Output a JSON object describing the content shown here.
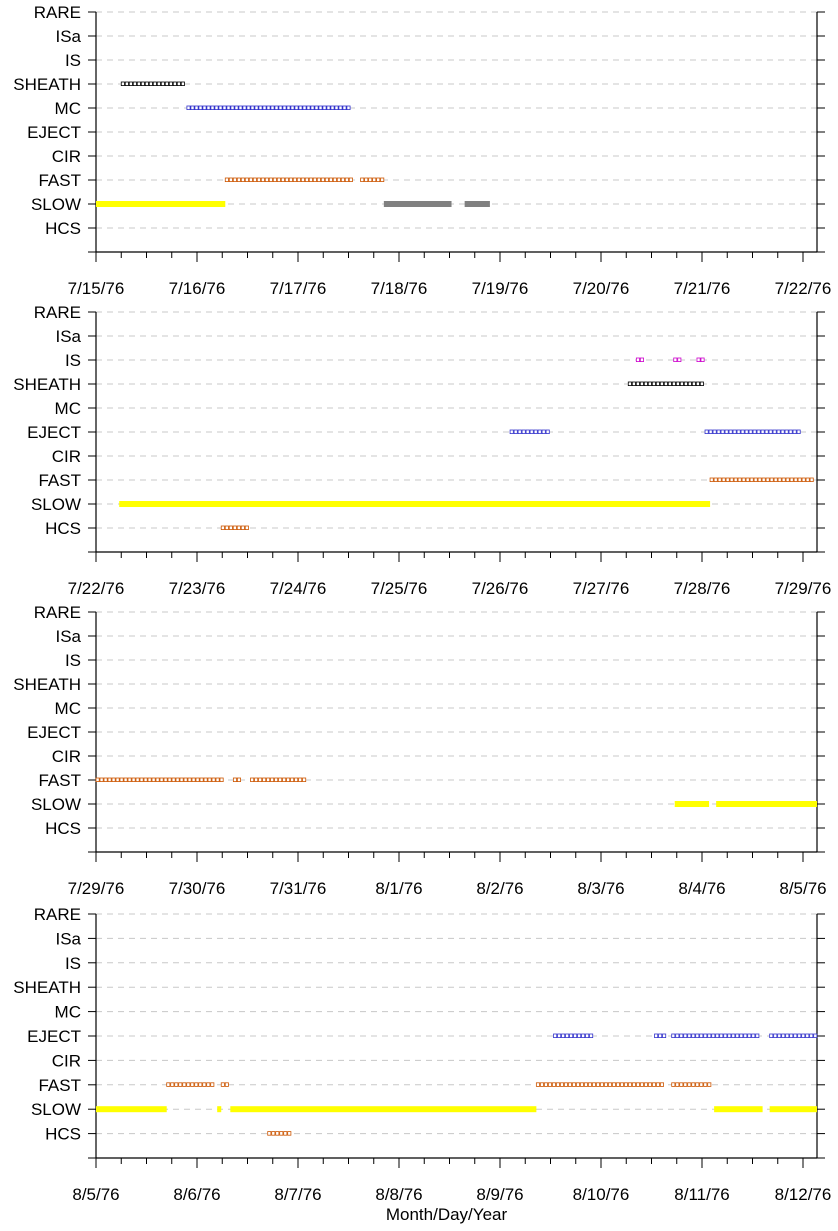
{
  "chart_data": {
    "type": "timeline",
    "xlabel": "Month/Day/Year",
    "categories": [
      "RARE",
      "ISa",
      "IS",
      "SHEATH",
      "MC",
      "EJECT",
      "CIR",
      "FAST",
      "SLOW",
      "HCS"
    ],
    "grid": "dashed horizontal",
    "colors": {
      "SHEATH": "#000000",
      "MC": "#3333cc",
      "EJECT": "#3333cc",
      "FAST": "#cc5500",
      "HCS": "#cc5500",
      "IS": "#cc00cc",
      "SLOW": "#ffff00",
      "SLOW_gray": "#808080"
    },
    "panels": [
      {
        "tick_labels": [
          "7/15/76",
          "7/16/76",
          "7/17/76",
          "7/18/76",
          "7/19/76",
          "7/20/76",
          "7/21/76",
          "7/22/76"
        ],
        "intervals": [
          {
            "category": "SHEATH",
            "start": 0.25,
            "end": 0.9,
            "style": "box"
          },
          {
            "category": "MC",
            "start": 0.9,
            "end": 2.52,
            "style": "box"
          },
          {
            "category": "FAST",
            "start": 1.28,
            "end": 2.56,
            "style": "box"
          },
          {
            "category": "FAST",
            "start": 2.62,
            "end": 2.85,
            "style": "box"
          },
          {
            "category": "SLOW",
            "start": 0.0,
            "end": 1.28,
            "style": "bar"
          },
          {
            "category": "SLOW",
            "start": 2.85,
            "end": 3.52,
            "style": "bar",
            "color": "gray"
          },
          {
            "category": "SLOW",
            "start": 3.65,
            "end": 3.9,
            "style": "bar",
            "color": "gray"
          }
        ]
      },
      {
        "tick_labels": [
          "7/22/76",
          "7/23/76",
          "7/24/76",
          "7/25/76",
          "7/26/76",
          "7/27/76",
          "7/28/76",
          "7/29/76"
        ],
        "intervals": [
          {
            "category": "IS",
            "start": 5.35,
            "end": 5.42,
            "style": "box"
          },
          {
            "category": "IS",
            "start": 5.72,
            "end": 5.79,
            "style": "box"
          },
          {
            "category": "IS",
            "start": 5.95,
            "end": 6.04,
            "style": "box"
          },
          {
            "category": "SHEATH",
            "start": 5.27,
            "end": 6.03,
            "style": "box"
          },
          {
            "category": "EJECT",
            "start": 4.1,
            "end": 4.52,
            "style": "box"
          },
          {
            "category": "EJECT",
            "start": 6.03,
            "end": 6.98,
            "style": "box"
          },
          {
            "category": "FAST",
            "start": 6.08,
            "end": 7.15,
            "style": "box"
          },
          {
            "category": "SLOW",
            "start": 0.23,
            "end": 6.08,
            "style": "bar"
          },
          {
            "category": "HCS",
            "start": 1.24,
            "end": 1.53,
            "style": "box"
          }
        ]
      },
      {
        "tick_labels": [
          "7/29/76",
          "7/30/76",
          "7/31/76",
          "8/1/76",
          "8/2/76",
          "8/3/76",
          "8/4/76",
          "8/5/76"
        ],
        "intervals": [
          {
            "category": "FAST",
            "start": 0.0,
            "end": 1.28,
            "style": "box"
          },
          {
            "category": "FAST",
            "start": 1.36,
            "end": 1.44,
            "style": "box"
          },
          {
            "category": "FAST",
            "start": 1.53,
            "end": 2.1,
            "style": "box"
          },
          {
            "category": "SLOW",
            "start": 5.73,
            "end": 6.07,
            "style": "bar"
          },
          {
            "category": "SLOW",
            "start": 6.14,
            "end": 7.15,
            "style": "bar"
          }
        ]
      },
      {
        "tick_labels": [
          "8/5/76",
          "8/6/76",
          "8/7/76",
          "8/8/76",
          "8/9/76",
          "8/10/76",
          "8/11/76",
          "8/12/76"
        ],
        "intervals": [
          {
            "category": "EJECT",
            "start": 4.53,
            "end": 4.94,
            "style": "box"
          },
          {
            "category": "EJECT",
            "start": 5.53,
            "end": 5.66,
            "style": "box"
          },
          {
            "category": "EJECT",
            "start": 5.7,
            "end": 6.58,
            "style": "box"
          },
          {
            "category": "EJECT",
            "start": 6.67,
            "end": 7.2,
            "style": "box"
          },
          {
            "category": "FAST",
            "start": 0.7,
            "end": 1.2,
            "style": "box"
          },
          {
            "category": "FAST",
            "start": 1.24,
            "end": 1.33,
            "style": "box"
          },
          {
            "category": "FAST",
            "start": 4.36,
            "end": 5.65,
            "style": "box"
          },
          {
            "category": "FAST",
            "start": 5.7,
            "end": 6.12,
            "style": "box"
          },
          {
            "category": "SLOW",
            "start": 0.0,
            "end": 0.7,
            "style": "bar"
          },
          {
            "category": "SLOW",
            "start": 1.2,
            "end": 1.24,
            "style": "bar"
          },
          {
            "category": "SLOW",
            "start": 1.33,
            "end": 4.36,
            "style": "bar"
          },
          {
            "category": "SLOW",
            "start": 6.12,
            "end": 6.6,
            "style": "bar"
          },
          {
            "category": "SLOW",
            "start": 6.67,
            "end": 7.2,
            "style": "bar"
          },
          {
            "category": "HCS",
            "start": 1.7,
            "end": 1.95,
            "style": "box"
          }
        ]
      }
    ]
  }
}
